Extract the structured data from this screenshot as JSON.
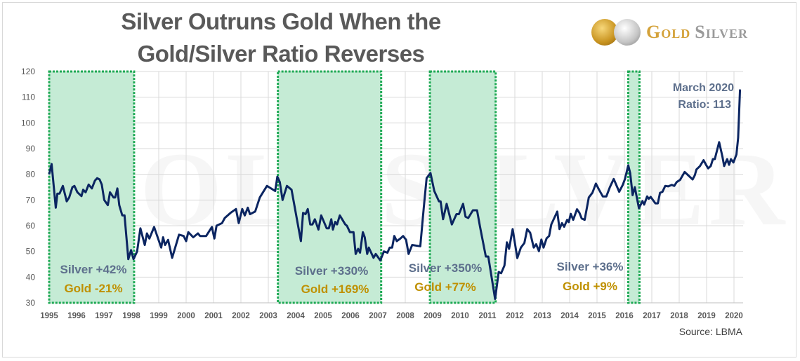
{
  "chart_data": {
    "type": "line",
    "title": [
      "Silver Outruns Gold When the",
      "Gold/Silver Ratio Reverses"
    ],
    "xlabel": "",
    "ylabel": "",
    "xlim": [
      1995,
      2020.35
    ],
    "ylim": [
      30,
      120
    ],
    "yticks": [
      30,
      40,
      50,
      60,
      70,
      80,
      90,
      100,
      110,
      120
    ],
    "xticks": [
      "1995",
      "1996",
      "1997",
      "1998",
      "1999",
      "2000",
      "2001",
      "2002",
      "2003",
      "2004",
      "2005",
      "2006",
      "2007",
      "2008",
      "2009",
      "2010",
      "2011",
      "2012",
      "2013",
      "2014",
      "2015",
      "2016",
      "2017",
      "2018",
      "2019",
      "2020"
    ],
    "grid": true,
    "series": [
      {
        "name": "Gold/Silver Ratio",
        "color": "#0b2561",
        "points": [
          [
            1995.0,
            80
          ],
          [
            1995.09,
            84
          ],
          [
            1995.24,
            67
          ],
          [
            1995.3,
            72.5
          ],
          [
            1995.38,
            72.5
          ],
          [
            1995.5,
            75.5
          ],
          [
            1995.64,
            69.5
          ],
          [
            1995.73,
            71
          ],
          [
            1995.85,
            75
          ],
          [
            1995.92,
            75.5
          ],
          [
            1996.03,
            73
          ],
          [
            1996.18,
            71.5
          ],
          [
            1996.24,
            74
          ],
          [
            1996.33,
            73
          ],
          [
            1996.44,
            76
          ],
          [
            1996.56,
            74.5
          ],
          [
            1996.67,
            77.5
          ],
          [
            1996.75,
            78.5
          ],
          [
            1996.84,
            78
          ],
          [
            1996.92,
            76
          ],
          [
            1997.01,
            70
          ],
          [
            1997.14,
            68
          ],
          [
            1997.22,
            73
          ],
          [
            1997.35,
            71
          ],
          [
            1997.41,
            71
          ],
          [
            1997.49,
            74.5
          ],
          [
            1997.56,
            68
          ],
          [
            1997.67,
            64
          ],
          [
            1997.75,
            64
          ],
          [
            1997.89,
            47
          ],
          [
            1997.99,
            50.5
          ],
          [
            1998.08,
            47
          ],
          [
            1998.21,
            50
          ],
          [
            1998.33,
            59
          ],
          [
            1998.49,
            52.5
          ],
          [
            1998.57,
            57
          ],
          [
            1998.66,
            55
          ],
          [
            1998.83,
            59.5
          ],
          [
            1999.09,
            51.5
          ],
          [
            1999.16,
            55.5
          ],
          [
            1999.23,
            52.5
          ],
          [
            1999.34,
            54.5
          ],
          [
            1999.49,
            47.5
          ],
          [
            1999.74,
            56.5
          ],
          [
            1999.91,
            56
          ],
          [
            2000.0,
            54
          ],
          [
            2000.08,
            57.5
          ],
          [
            2000.26,
            55.5
          ],
          [
            2000.43,
            57
          ],
          [
            2000.51,
            56
          ],
          [
            2000.73,
            56
          ],
          [
            2000.94,
            59.5
          ],
          [
            2001.03,
            55
          ],
          [
            2001.11,
            60
          ],
          [
            2001.31,
            61
          ],
          [
            2001.41,
            63
          ],
          [
            2001.62,
            65
          ],
          [
            2001.82,
            66.5
          ],
          [
            2001.92,
            61
          ],
          [
            2002.05,
            66.5
          ],
          [
            2002.14,
            64
          ],
          [
            2002.25,
            67
          ],
          [
            2002.33,
            64.5
          ],
          [
            2002.52,
            65.5
          ],
          [
            2002.69,
            71
          ],
          [
            2002.95,
            75.5
          ],
          [
            2003.25,
            73.5
          ],
          [
            2003.33,
            79.1
          ],
          [
            2003.42,
            77
          ],
          [
            2003.52,
            70
          ],
          [
            2003.68,
            75.5
          ],
          [
            2003.85,
            74
          ],
          [
            2004.19,
            54
          ],
          [
            2004.27,
            65
          ],
          [
            2004.36,
            64.5
          ],
          [
            2004.44,
            66.5
          ],
          [
            2004.53,
            60.5
          ],
          [
            2004.61,
            60.5
          ],
          [
            2004.7,
            62.5
          ],
          [
            2004.83,
            58.5
          ],
          [
            2004.93,
            64
          ],
          [
            2005.13,
            59
          ],
          [
            2005.21,
            59
          ],
          [
            2005.3,
            62.5
          ],
          [
            2005.36,
            58.5
          ],
          [
            2005.44,
            61.5
          ],
          [
            2005.51,
            60.5
          ],
          [
            2005.61,
            64
          ],
          [
            2005.81,
            60.5
          ],
          [
            2005.87,
            60
          ],
          [
            2005.98,
            57.5
          ],
          [
            2006.11,
            57.5
          ],
          [
            2006.19,
            49
          ],
          [
            2006.28,
            51
          ],
          [
            2006.35,
            49.5
          ],
          [
            2006.45,
            57.5
          ],
          [
            2006.52,
            55.5
          ],
          [
            2006.61,
            49
          ],
          [
            2006.67,
            51.5
          ],
          [
            2006.84,
            47.5
          ],
          [
            2006.92,
            49
          ],
          [
            2007.09,
            46.5
          ],
          [
            2007.22,
            50
          ],
          [
            2007.35,
            49.5
          ],
          [
            2007.43,
            51.5
          ],
          [
            2007.52,
            51.5
          ],
          [
            2007.6,
            56
          ],
          [
            2007.69,
            54
          ],
          [
            2007.82,
            55
          ],
          [
            2007.92,
            56
          ],
          [
            2008.03,
            54.5
          ],
          [
            2008.12,
            49
          ],
          [
            2008.25,
            52.5
          ],
          [
            2008.55,
            52
          ],
          [
            2008.68,
            67.5
          ],
          [
            2008.78,
            78.5
          ],
          [
            2008.92,
            80.5
          ],
          [
            2009.06,
            73.5
          ],
          [
            2009.23,
            69.5
          ],
          [
            2009.29,
            69.5
          ],
          [
            2009.38,
            62.5
          ],
          [
            2009.51,
            68.5
          ],
          [
            2009.7,
            60.5
          ],
          [
            2009.87,
            64.5
          ],
          [
            2009.96,
            64.5
          ],
          [
            2010.11,
            68.5
          ],
          [
            2010.2,
            63.5
          ],
          [
            2010.3,
            63
          ],
          [
            2010.47,
            66
          ],
          [
            2010.62,
            66
          ],
          [
            2010.73,
            59.5
          ],
          [
            2010.94,
            48
          ],
          [
            2011.03,
            48
          ],
          [
            2011.28,
            31.5
          ],
          [
            2011.41,
            42
          ],
          [
            2011.5,
            41.5
          ],
          [
            2011.62,
            44.5
          ],
          [
            2011.71,
            53.5
          ],
          [
            2011.79,
            51
          ],
          [
            2011.92,
            58.7
          ],
          [
            2012.09,
            47.4
          ],
          [
            2012.22,
            51.5
          ],
          [
            2012.35,
            53.3
          ],
          [
            2012.45,
            58.7
          ],
          [
            2012.56,
            57.3
          ],
          [
            2012.69,
            51.5
          ],
          [
            2012.78,
            52.8
          ],
          [
            2012.88,
            50.1
          ],
          [
            2012.97,
            54.6
          ],
          [
            2013.05,
            51.5
          ],
          [
            2013.16,
            55.1
          ],
          [
            2013.25,
            56
          ],
          [
            2013.33,
            60.5
          ],
          [
            2013.55,
            65.5
          ],
          [
            2013.63,
            58.7
          ],
          [
            2013.72,
            61
          ],
          [
            2013.8,
            59.6
          ],
          [
            2013.91,
            62.3
          ],
          [
            2013.97,
            61.4
          ],
          [
            2014.04,
            64.6
          ],
          [
            2014.13,
            62.3
          ],
          [
            2014.27,
            66.4
          ],
          [
            2014.36,
            65
          ],
          [
            2014.44,
            62.8
          ],
          [
            2014.55,
            62.3
          ],
          [
            2014.7,
            71
          ],
          [
            2014.83,
            72.8
          ],
          [
            2014.96,
            76.4
          ],
          [
            2015.07,
            74.1
          ],
          [
            2015.21,
            71.4
          ],
          [
            2015.34,
            71.4
          ],
          [
            2015.47,
            75
          ],
          [
            2015.61,
            78.2
          ],
          [
            2015.81,
            73.2
          ],
          [
            2015.94,
            75.9
          ],
          [
            2016.02,
            78.2
          ],
          [
            2016.14,
            83.5
          ],
          [
            2016.21,
            80.5
          ],
          [
            2016.3,
            71.9
          ],
          [
            2016.38,
            75
          ],
          [
            2016.53,
            66.8
          ],
          [
            2016.66,
            69.6
          ],
          [
            2016.72,
            68.2
          ],
          [
            2016.83,
            71.4
          ],
          [
            2016.89,
            70.5
          ],
          [
            2016.96,
            71.2
          ],
          [
            2017.13,
            68.7
          ],
          [
            2017.22,
            68.7
          ],
          [
            2017.3,
            72.8
          ],
          [
            2017.39,
            73.2
          ],
          [
            2017.49,
            75.5
          ],
          [
            2017.6,
            75.3
          ],
          [
            2017.73,
            75.9
          ],
          [
            2017.82,
            75.5
          ],
          [
            2017.91,
            77
          ],
          [
            2018.03,
            77.8
          ],
          [
            2018.2,
            80.9
          ],
          [
            2018.33,
            79.6
          ],
          [
            2018.49,
            78
          ],
          [
            2018.57,
            79.6
          ],
          [
            2018.63,
            81.9
          ],
          [
            2018.76,
            83.2
          ],
          [
            2018.89,
            85.5
          ],
          [
            2018.98,
            83.7
          ],
          [
            2019.06,
            82.3
          ],
          [
            2019.15,
            83.2
          ],
          [
            2019.23,
            85.9
          ],
          [
            2019.3,
            85.9
          ],
          [
            2019.46,
            92.5
          ],
          [
            2019.58,
            86.8
          ],
          [
            2019.64,
            83.2
          ],
          [
            2019.75,
            85.9
          ],
          [
            2019.82,
            83.7
          ],
          [
            2019.89,
            85.9
          ],
          [
            2019.98,
            84.6
          ],
          [
            2020.09,
            87.7
          ],
          [
            2020.15,
            94.1
          ],
          [
            2020.22,
            113
          ]
        ]
      }
    ],
    "highlight_periods": [
      {
        "start": 1995.0,
        "end": 1998.1,
        "silver": "Silver +42%",
        "gold": "Gold -21%"
      },
      {
        "start": 2003.35,
        "end": 2007.12,
        "silver": "Silver +330%",
        "gold": "Gold +169%"
      },
      {
        "start": 2008.9,
        "end": 2011.3,
        "silver": "Silver +350%",
        "gold": "Gold +77%"
      },
      {
        "start": 2016.14,
        "end": 2016.55,
        "silver": "Silver +36%",
        "gold": "Gold +9%"
      }
    ],
    "annotations": {
      "latest_line1": "March 2020",
      "latest_line2": "Ratio: 113"
    },
    "source": "Source: LBMA",
    "colors": {
      "line": "#0b2561",
      "highlight_fill": "#c5ebd5",
      "highlight_border": "#1faa55",
      "silver_text": "#5d6f8c",
      "gold_text": "#bf9000"
    }
  },
  "logo": {
    "text_gold": "Gold",
    "text_silver": "Silver",
    "watermark": "GOLDSILVER"
  }
}
